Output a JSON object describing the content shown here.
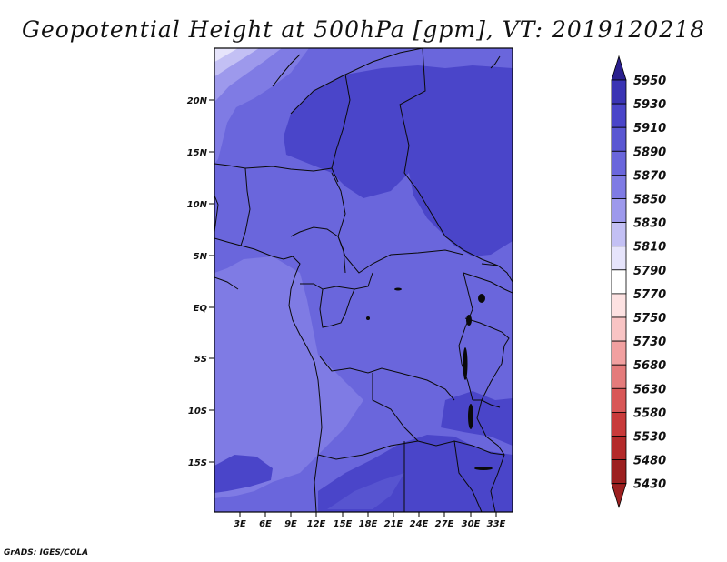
{
  "title": "Geopotential Height at 500hPa [gpm], VT: 2019120218",
  "credit": "GrADS: IGES/COLA",
  "map": {
    "lat_labels": [
      "20N",
      "15N",
      "10N",
      "5N",
      "EQ",
      "5S",
      "10S",
      "15S"
    ],
    "lon_labels": [
      "3E",
      "6E",
      "9E",
      "12E",
      "15E",
      "18E",
      "21E",
      "24E",
      "27E",
      "30E",
      "33E"
    ]
  },
  "colorbar": {
    "levels": [
      "5950",
      "5930",
      "5910",
      "5890",
      "5870",
      "5850",
      "5830",
      "5810",
      "5790",
      "5770",
      "5750",
      "5730",
      "5680",
      "5630",
      "5580",
      "5530",
      "5480",
      "5430"
    ],
    "colors": [
      "#2a1f8e",
      "#3a34b4",
      "#4a45c9",
      "#5a57d2",
      "#6a66dc",
      "#7f7be4",
      "#9d99ec",
      "#c3c0f4",
      "#e6e4fb",
      "#ffffff",
      "#fde2e2",
      "#f8c4c4",
      "#f1a0a0",
      "#e47b7b",
      "#d85757",
      "#c83a3a",
      "#b42a2a",
      "#9c1f1f"
    ]
  }
}
